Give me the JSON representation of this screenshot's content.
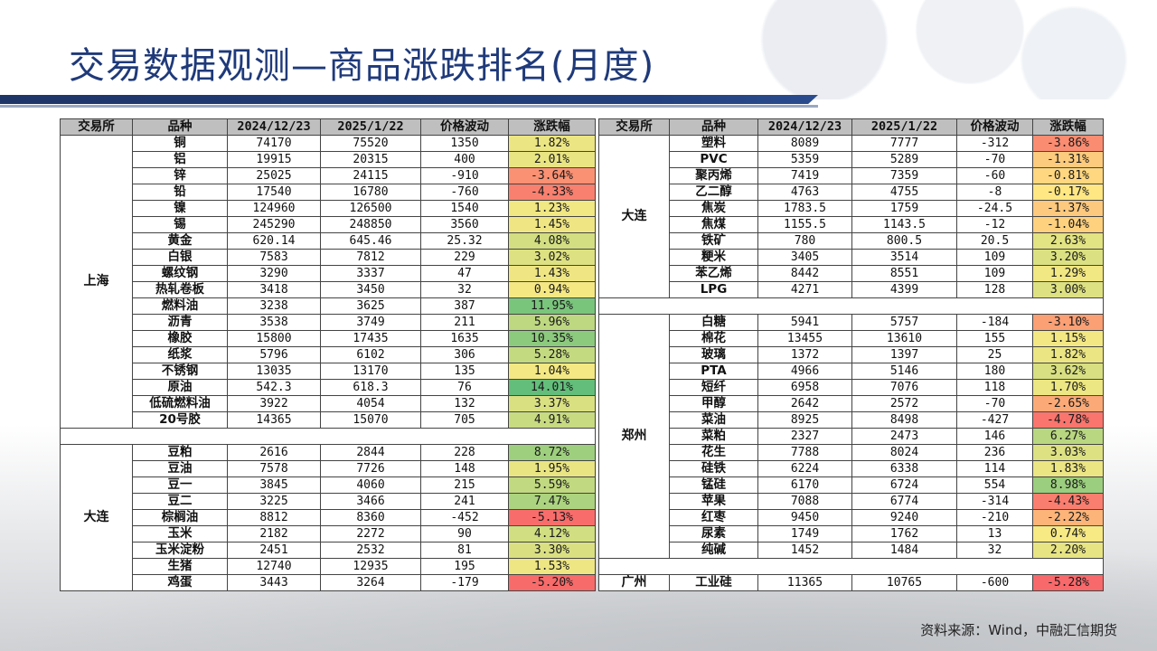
{
  "title": "交易数据观测—商品涨跌排名(月度)",
  "source": "资料来源：Wind，中融汇信期货",
  "headers": [
    "交易所",
    "品种",
    "2024/12/23",
    "2025/1/22",
    "价格波动",
    "涨跌幅"
  ],
  "colors": {
    "pos_max": "#63be7b",
    "mid": "#ffeb84",
    "neg_max": "#f8696b",
    "header_bg": "#bfbfbf"
  },
  "left_groups": [
    {
      "exchange": "上海",
      "rows": [
        {
          "name": "铜",
          "d1": "74170",
          "d2": "75520",
          "chg": "1350",
          "pct": "1.82%",
          "v": 1.82
        },
        {
          "name": "铝",
          "d1": "19915",
          "d2": "20315",
          "chg": "400",
          "pct": "2.01%",
          "v": 2.01
        },
        {
          "name": "锌",
          "d1": "25025",
          "d2": "24115",
          "chg": "-910",
          "pct": "-3.64%",
          "v": -3.64
        },
        {
          "name": "铅",
          "d1": "17540",
          "d2": "16780",
          "chg": "-760",
          "pct": "-4.33%",
          "v": -4.33
        },
        {
          "name": "镍",
          "d1": "124960",
          "d2": "126500",
          "chg": "1540",
          "pct": "1.23%",
          "v": 1.23
        },
        {
          "name": "锡",
          "d1": "245290",
          "d2": "248850",
          "chg": "3560",
          "pct": "1.45%",
          "v": 1.45
        },
        {
          "name": "黄金",
          "d1": "620.14",
          "d2": "645.46",
          "chg": "25.32",
          "pct": "4.08%",
          "v": 4.08
        },
        {
          "name": "白银",
          "d1": "7583",
          "d2": "7812",
          "chg": "229",
          "pct": "3.02%",
          "v": 3.02
        },
        {
          "name": "螺纹钢",
          "d1": "3290",
          "d2": "3337",
          "chg": "47",
          "pct": "1.43%",
          "v": 1.43
        },
        {
          "name": "热轧卷板",
          "d1": "3418",
          "d2": "3450",
          "chg": "32",
          "pct": "0.94%",
          "v": 0.94
        },
        {
          "name": "燃料油",
          "d1": "3238",
          "d2": "3625",
          "chg": "387",
          "pct": "11.95%",
          "v": 11.95
        },
        {
          "name": "沥青",
          "d1": "3538",
          "d2": "3749",
          "chg": "211",
          "pct": "5.96%",
          "v": 5.96
        },
        {
          "name": "橡胶",
          "d1": "15800",
          "d2": "17435",
          "chg": "1635",
          "pct": "10.35%",
          "v": 10.35
        },
        {
          "name": "纸浆",
          "d1": "5796",
          "d2": "6102",
          "chg": "306",
          "pct": "5.28%",
          "v": 5.28
        },
        {
          "name": "不锈钢",
          "d1": "13035",
          "d2": "13170",
          "chg": "135",
          "pct": "1.04%",
          "v": 1.04
        },
        {
          "name": "原油",
          "d1": "542.3",
          "d2": "618.3",
          "chg": "76",
          "pct": "14.01%",
          "v": 14.01
        },
        {
          "name": "低硫燃料油",
          "d1": "3922",
          "d2": "4054",
          "chg": "132",
          "pct": "3.37%",
          "v": 3.37
        },
        {
          "name": "20号胶",
          "d1": "14365",
          "d2": "15070",
          "chg": "705",
          "pct": "4.91%",
          "v": 4.91
        }
      ]
    },
    {
      "exchange": "大连",
      "rows": [
        {
          "name": "豆粕",
          "d1": "2616",
          "d2": "2844",
          "chg": "228",
          "pct": "8.72%",
          "v": 8.72
        },
        {
          "name": "豆油",
          "d1": "7578",
          "d2": "7726",
          "chg": "148",
          "pct": "1.95%",
          "v": 1.95
        },
        {
          "name": "豆一",
          "d1": "3845",
          "d2": "4060",
          "chg": "215",
          "pct": "5.59%",
          "v": 5.59
        },
        {
          "name": "豆二",
          "d1": "3225",
          "d2": "3466",
          "chg": "241",
          "pct": "7.47%",
          "v": 7.47
        },
        {
          "name": "棕榈油",
          "d1": "8812",
          "d2": "8360",
          "chg": "-452",
          "pct": "-5.13%",
          "v": -5.13
        },
        {
          "name": "玉米",
          "d1": "2182",
          "d2": "2272",
          "chg": "90",
          "pct": "4.12%",
          "v": 4.12
        },
        {
          "name": "玉米淀粉",
          "d1": "2451",
          "d2": "2532",
          "chg": "81",
          "pct": "3.30%",
          "v": 3.3
        },
        {
          "name": "生猪",
          "d1": "12740",
          "d2": "12935",
          "chg": "195",
          "pct": "1.53%",
          "v": 1.53
        },
        {
          "name": "鸡蛋",
          "d1": "3443",
          "d2": "3264",
          "chg": "-179",
          "pct": "-5.20%",
          "v": -5.2
        }
      ]
    }
  ],
  "right_groups": [
    {
      "exchange": "大连",
      "rows": [
        {
          "name": "塑料",
          "d1": "8089",
          "d2": "7777",
          "chg": "-312",
          "pct": "-3.86%",
          "v": -3.86
        },
        {
          "name": "PVC",
          "d1": "5359",
          "d2": "5289",
          "chg": "-70",
          "pct": "-1.31%",
          "v": -1.31
        },
        {
          "name": "聚丙烯",
          "d1": "7419",
          "d2": "7359",
          "chg": "-60",
          "pct": "-0.81%",
          "v": -0.81
        },
        {
          "name": "乙二醇",
          "d1": "4763",
          "d2": "4755",
          "chg": "-8",
          "pct": "-0.17%",
          "v": -0.17
        },
        {
          "name": "焦炭",
          "d1": "1783.5",
          "d2": "1759",
          "chg": "-24.5",
          "pct": "-1.37%",
          "v": -1.37
        },
        {
          "name": "焦煤",
          "d1": "1155.5",
          "d2": "1143.5",
          "chg": "-12",
          "pct": "-1.04%",
          "v": -1.04
        },
        {
          "name": "铁矿",
          "d1": "780",
          "d2": "800.5",
          "chg": "20.5",
          "pct": "2.63%",
          "v": 2.63
        },
        {
          "name": "粳米",
          "d1": "3405",
          "d2": "3514",
          "chg": "109",
          "pct": "3.20%",
          "v": 3.2
        },
        {
          "name": "苯乙烯",
          "d1": "8442",
          "d2": "8551",
          "chg": "109",
          "pct": "1.29%",
          "v": 1.29
        },
        {
          "name": "LPG",
          "d1": "4271",
          "d2": "4399",
          "chg": "128",
          "pct": "3.00%",
          "v": 3.0
        }
      ]
    },
    {
      "exchange": "郑州",
      "rows": [
        {
          "name": "白糖",
          "d1": "5941",
          "d2": "5757",
          "chg": "-184",
          "pct": "-3.10%",
          "v": -3.1
        },
        {
          "name": "棉花",
          "d1": "13455",
          "d2": "13610",
          "chg": "155",
          "pct": "1.15%",
          "v": 1.15
        },
        {
          "name": "玻璃",
          "d1": "1372",
          "d2": "1397",
          "chg": "25",
          "pct": "1.82%",
          "v": 1.82
        },
        {
          "name": "PTA",
          "d1": "4966",
          "d2": "5146",
          "chg": "180",
          "pct": "3.62%",
          "v": 3.62
        },
        {
          "name": "短纤",
          "d1": "6958",
          "d2": "7076",
          "chg": "118",
          "pct": "1.70%",
          "v": 1.7
        },
        {
          "name": "甲醇",
          "d1": "2642",
          "d2": "2572",
          "chg": "-70",
          "pct": "-2.65%",
          "v": -2.65
        },
        {
          "name": "菜油",
          "d1": "8925",
          "d2": "8498",
          "chg": "-427",
          "pct": "-4.78%",
          "v": -4.78
        },
        {
          "name": "菜粕",
          "d1": "2327",
          "d2": "2473",
          "chg": "146",
          "pct": "6.27%",
          "v": 6.27
        },
        {
          "name": "花生",
          "d1": "7788",
          "d2": "8024",
          "chg": "236",
          "pct": "3.03%",
          "v": 3.03
        },
        {
          "name": "硅铁",
          "d1": "6224",
          "d2": "6338",
          "chg": "114",
          "pct": "1.83%",
          "v": 1.83
        },
        {
          "name": "锰硅",
          "d1": "6170",
          "d2": "6724",
          "chg": "554",
          "pct": "8.98%",
          "v": 8.98
        },
        {
          "name": "苹果",
          "d1": "7088",
          "d2": "6774",
          "chg": "-314",
          "pct": "-4.43%",
          "v": -4.43
        },
        {
          "name": "红枣",
          "d1": "9450",
          "d2": "9240",
          "chg": "-210",
          "pct": "-2.22%",
          "v": -2.22
        },
        {
          "name": "尿素",
          "d1": "1749",
          "d2": "1762",
          "chg": "13",
          "pct": "0.74%",
          "v": 0.74
        },
        {
          "name": "纯碱",
          "d1": "1452",
          "d2": "1484",
          "chg": "32",
          "pct": "2.20%",
          "v": 2.2
        }
      ]
    },
    {
      "exchange": "广州",
      "rows": [
        {
          "name": "工业硅",
          "d1": "11365",
          "d2": "10765",
          "chg": "-600",
          "pct": "-5.28%",
          "v": -5.28
        }
      ]
    }
  ]
}
